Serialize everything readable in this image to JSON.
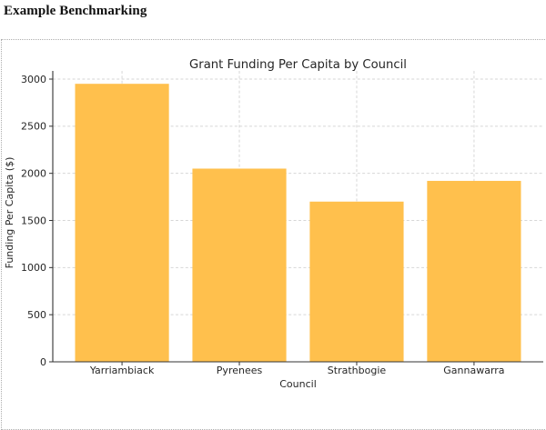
{
  "page": {
    "header": "Example Benchmarking"
  },
  "colors": {
    "bar": "#FFC04D",
    "grid": "#d6d6d6",
    "spine": "#333333",
    "text": "#262626",
    "frame_border": "#adadad",
    "background": "#ffffff"
  },
  "chart_data": {
    "type": "bar",
    "title": "Grant Funding Per Capita by Council",
    "xlabel": "Council",
    "ylabel": "Funding Per Capita ($)",
    "categories": [
      "Yarriambiack",
      "Pyrenees",
      "Strathbogie",
      "Gannawarra"
    ],
    "values": [
      2950,
      2050,
      1700,
      1920
    ],
    "ylim": [
      0,
      3000
    ],
    "yticks": [
      0,
      500,
      1000,
      1500,
      2000,
      2500,
      3000
    ],
    "grid": "both",
    "grid_style": "dashed",
    "legend": "none",
    "bar_color": "#FFC04D"
  }
}
